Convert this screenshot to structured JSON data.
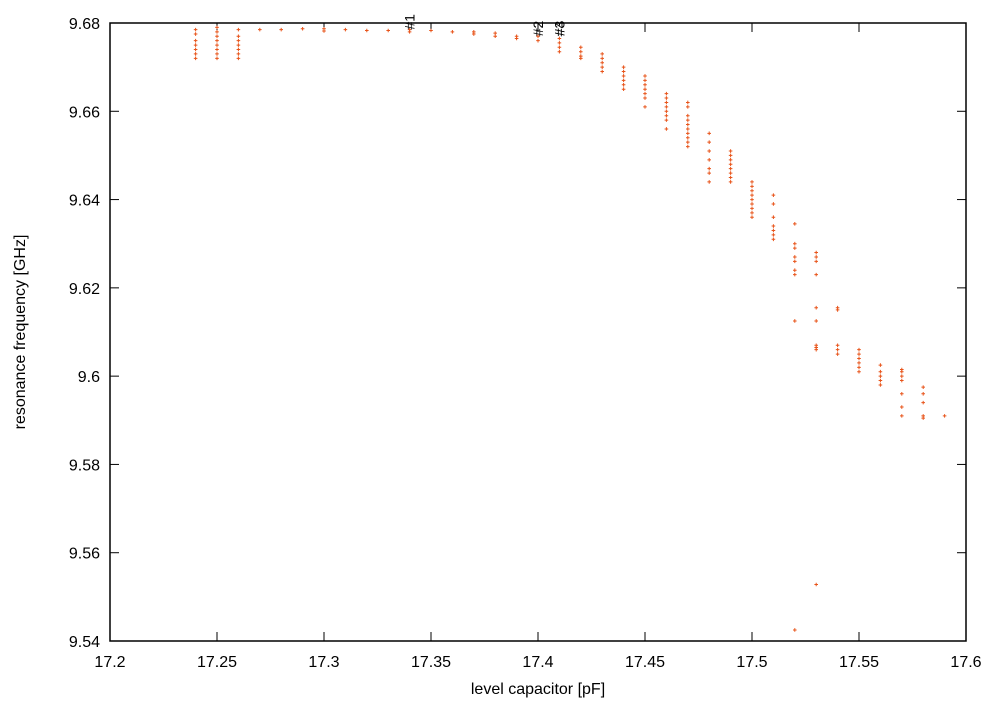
{
  "chart_data": {
    "type": "scatter",
    "xlabel": "level capacitor [pF]",
    "ylabel": "resonance frequency [GHz]",
    "color": "#e8541a",
    "xlim": [
      17.2,
      17.6
    ],
    "xticks": [
      17.2,
      17.25,
      17.3,
      17.35,
      17.4,
      17.45,
      17.5,
      17.55,
      17.6
    ],
    "ylim": [
      9.54,
      9.68
    ],
    "yticks": [
      9.54,
      9.56,
      9.58,
      9.6,
      9.62,
      9.64,
      9.66,
      9.68
    ],
    "annotations": [
      {
        "text": "#1",
        "x": 17.34,
        "y": 9.6785
      },
      {
        "text": "#2",
        "x": 17.4,
        "y": 9.677
      },
      {
        "text": "#3",
        "x": 17.41,
        "y": 9.677
      },
      {
        "text": "#4",
        "x": 17.41,
        "y": 9.677
      }
    ],
    "x": [
      17.24,
      17.24,
      17.24,
      17.24,
      17.24,
      17.24,
      17.24,
      17.25,
      17.25,
      17.25,
      17.25,
      17.25,
      17.25,
      17.25,
      17.25,
      17.26,
      17.26,
      17.26,
      17.26,
      17.26,
      17.26,
      17.26,
      17.27,
      17.28,
      17.29,
      17.3,
      17.3,
      17.31,
      17.32,
      17.33,
      17.34,
      17.34,
      17.35,
      17.36,
      17.37,
      17.37,
      17.38,
      17.38,
      17.39,
      17.39,
      17.4,
      17.4,
      17.41,
      17.41,
      17.41,
      17.41,
      17.42,
      17.42,
      17.42,
      17.42,
      17.43,
      17.43,
      17.43,
      17.43,
      17.43,
      17.44,
      17.44,
      17.44,
      17.44,
      17.44,
      17.44,
      17.45,
      17.45,
      17.45,
      17.45,
      17.45,
      17.45,
      17.45,
      17.46,
      17.46,
      17.46,
      17.46,
      17.46,
      17.46,
      17.46,
      17.46,
      17.47,
      17.47,
      17.47,
      17.47,
      17.47,
      17.47,
      17.47,
      17.47,
      17.47,
      17.47,
      17.48,
      17.48,
      17.48,
      17.48,
      17.48,
      17.48,
      17.48,
      17.49,
      17.49,
      17.49,
      17.49,
      17.49,
      17.49,
      17.49,
      17.49,
      17.5,
      17.5,
      17.5,
      17.5,
      17.5,
      17.5,
      17.5,
      17.5,
      17.5,
      17.51,
      17.51,
      17.51,
      17.51,
      17.51,
      17.51,
      17.51,
      17.52,
      17.52,
      17.52,
      17.52,
      17.52,
      17.52,
      17.52,
      17.52,
      17.52,
      17.53,
      17.53,
      17.53,
      17.53,
      17.53,
      17.53,
      17.53,
      17.53,
      17.53,
      17.53,
      17.54,
      17.54,
      17.54,
      17.54,
      17.54,
      17.55,
      17.55,
      17.55,
      17.55,
      17.55,
      17.55,
      17.56,
      17.56,
      17.56,
      17.56,
      17.56,
      17.57,
      17.57,
      17.57,
      17.57,
      17.57,
      17.57,
      17.57,
      17.58,
      17.58,
      17.58,
      17.58,
      17.58,
      17.59
    ],
    "values": [
      9.6785,
      9.6775,
      9.676,
      9.675,
      9.674,
      9.673,
      9.672,
      9.679,
      9.678,
      9.677,
      9.676,
      9.675,
      9.674,
      9.673,
      9.672,
      9.6785,
      9.677,
      9.676,
      9.675,
      9.674,
      9.673,
      9.672,
      9.6785,
      9.6785,
      9.6787,
      9.6787,
      9.6782,
      9.6785,
      9.6783,
      9.6783,
      9.6785,
      9.678,
      9.6783,
      9.678,
      9.678,
      9.6775,
      9.6777,
      9.677,
      9.677,
      9.6765,
      9.677,
      9.676,
      9.6765,
      9.6755,
      9.6745,
      9.6735,
      9.6745,
      9.6735,
      9.6725,
      9.672,
      9.673,
      9.672,
      9.671,
      9.67,
      9.669,
      9.67,
      9.669,
      9.668,
      9.667,
      9.666,
      9.665,
      9.668,
      9.667,
      9.666,
      9.665,
      9.664,
      9.663,
      9.661,
      9.664,
      9.663,
      9.662,
      9.661,
      9.66,
      9.659,
      9.658,
      9.656,
      9.662,
      9.661,
      9.659,
      9.658,
      9.657,
      9.656,
      9.655,
      9.654,
      9.653,
      9.652,
      9.655,
      9.653,
      9.651,
      9.649,
      9.647,
      9.646,
      9.644,
      9.651,
      9.65,
      9.649,
      9.648,
      9.647,
      9.646,
      9.645,
      9.644,
      9.644,
      9.643,
      9.642,
      9.641,
      9.64,
      9.639,
      9.638,
      9.637,
      9.636,
      9.641,
      9.639,
      9.636,
      9.634,
      9.633,
      9.632,
      9.631,
      9.6345,
      9.63,
      9.629,
      9.627,
      9.626,
      9.624,
      9.623,
      9.6125,
      9.5425,
      9.628,
      9.627,
      9.626,
      9.623,
      9.6155,
      9.6125,
      9.607,
      9.6065,
      9.606,
      9.5528,
      9.6155,
      9.615,
      9.607,
      9.606,
      9.605,
      9.606,
      9.605,
      9.604,
      9.603,
      9.602,
      9.601,
      9.6025,
      9.601,
      9.6,
      9.599,
      9.598,
      9.6015,
      9.601,
      9.6,
      9.599,
      9.596,
      9.593,
      9.591,
      9.5975,
      9.596,
      9.594,
      9.591,
      9.5905,
      9.591
    ]
  }
}
